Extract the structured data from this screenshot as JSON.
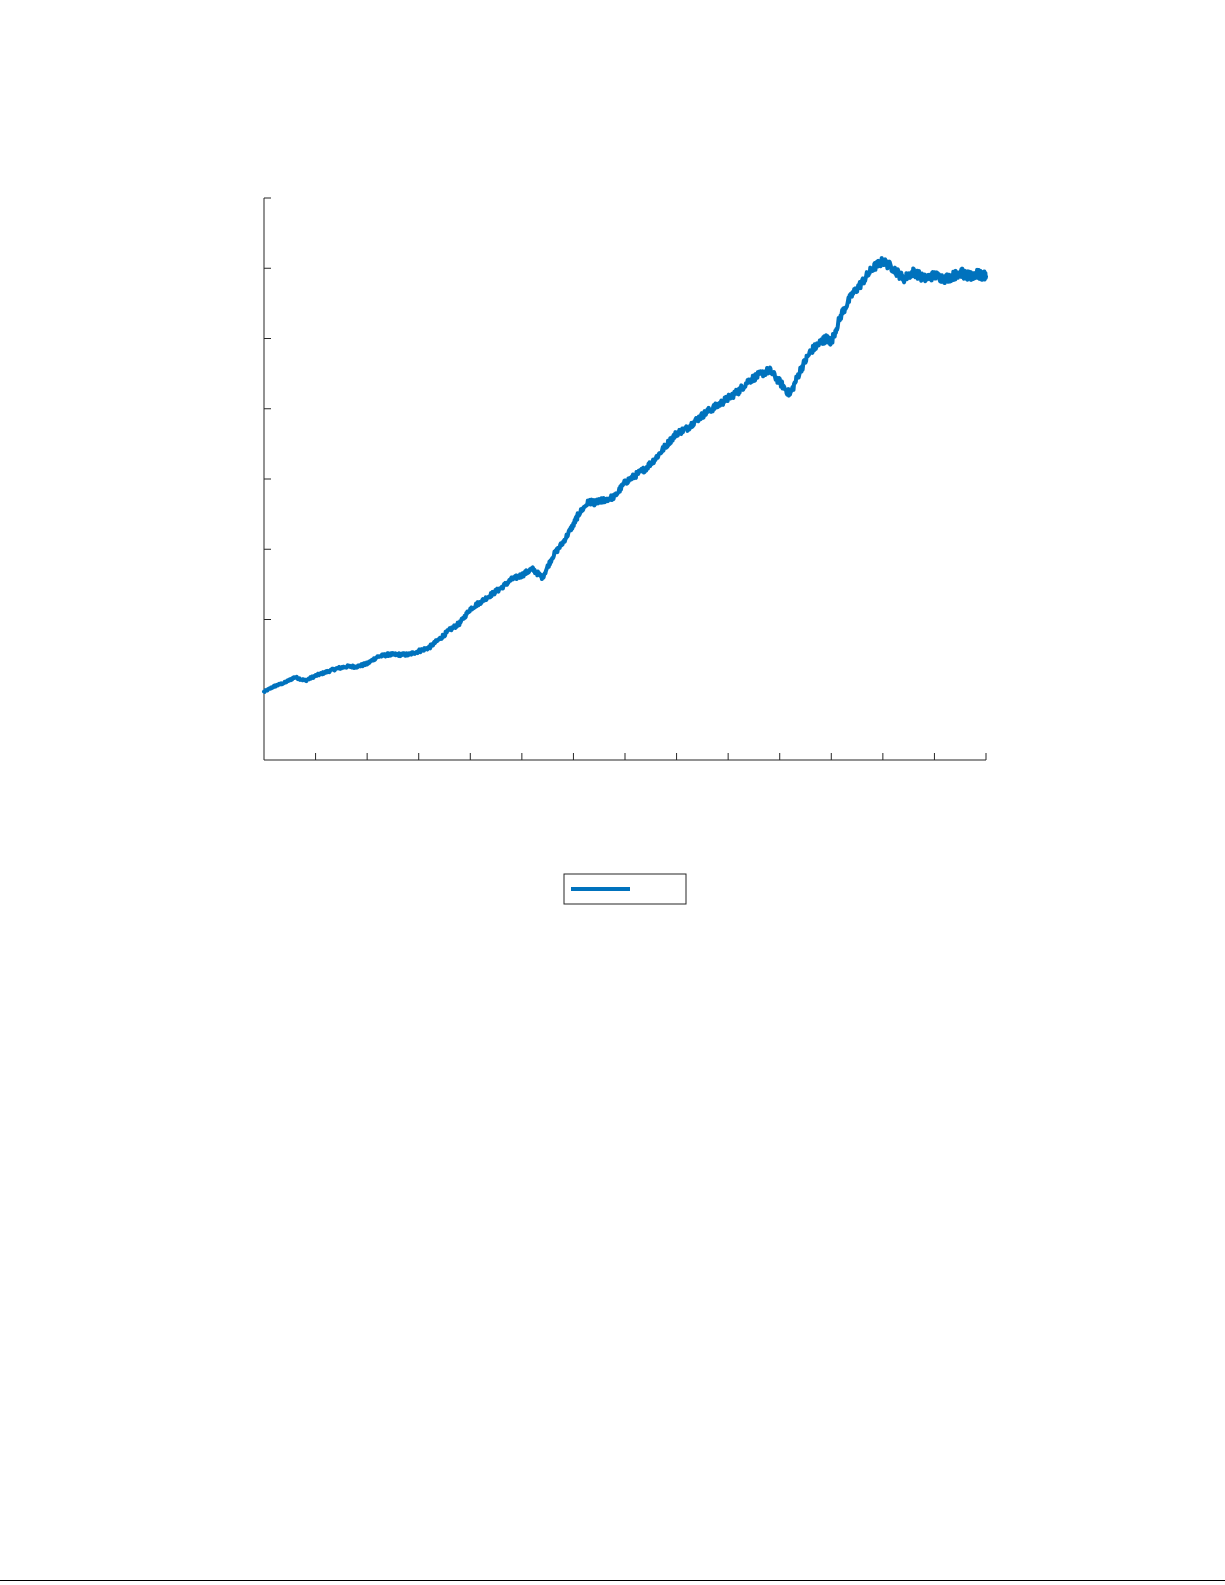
{
  "chart_data": {
    "type": "line",
    "title": "",
    "xlabel": "",
    "ylabel": "",
    "xlim": [
      0,
      14
    ],
    "ylim": [
      0,
      8
    ],
    "x_tick_count": 15,
    "y_tick_count": 8,
    "x_tick_labels": [],
    "y_tick_labels": [],
    "grid": false,
    "legend_position": "bottom-center",
    "series": [
      {
        "color": "#0072BD",
        "x": [
          0,
          0.2,
          0.4,
          0.6,
          0.8,
          1.0,
          1.2,
          1.4,
          1.6,
          1.8,
          2.0,
          2.2,
          2.4,
          2.6,
          2.8,
          3.0,
          3.2,
          3.4,
          3.6,
          3.8,
          4.0,
          4.2,
          4.4,
          4.6,
          4.8,
          5.0,
          5.2,
          5.4,
          5.6,
          5.8,
          6.0,
          6.1,
          6.3,
          6.4,
          6.5,
          6.6,
          6.8,
          7.0,
          7.2,
          7.4,
          7.6,
          7.8,
          8.0,
          8.2,
          8.4,
          8.6,
          8.8,
          9.0,
          9.2,
          9.4,
          9.6,
          9.8,
          10.0,
          10.2,
          10.4,
          10.6,
          10.8,
          10.9,
          11.0,
          11.2,
          11.4,
          11.6,
          11.8,
          12.0,
          12.2,
          12.4,
          12.6,
          12.8,
          13.0,
          13.2,
          13.4,
          13.5,
          13.6,
          13.7,
          13.8,
          13.9,
          14.0
        ],
        "y": [
          0.97,
          1.05,
          1.1,
          1.18,
          1.13,
          1.2,
          1.25,
          1.3,
          1.33,
          1.33,
          1.37,
          1.47,
          1.5,
          1.5,
          1.5,
          1.55,
          1.6,
          1.72,
          1.85,
          1.95,
          2.15,
          2.25,
          2.35,
          2.45,
          2.57,
          2.63,
          2.72,
          2.6,
          2.9,
          3.1,
          3.35,
          3.5,
          3.68,
          3.66,
          3.68,
          3.7,
          3.75,
          3.95,
          4.05,
          4.15,
          4.3,
          4.48,
          4.65,
          4.72,
          4.85,
          4.96,
          5.05,
          5.15,
          5.25,
          5.4,
          5.48,
          5.55,
          5.38,
          5.2,
          5.55,
          5.82,
          5.95,
          6.0,
          5.95,
          6.35,
          6.62,
          6.8,
          7.0,
          7.1,
          7.0,
          6.85,
          6.95,
          6.85,
          6.9,
          6.85,
          6.9,
          6.95,
          6.9,
          6.88,
          6.92,
          6.9,
          6.88
        ],
        "y_detail_note": ""
      }
    ],
    "legend_entries": [
      {
        "label": "",
        "color": "#0072BD"
      }
    ]
  }
}
